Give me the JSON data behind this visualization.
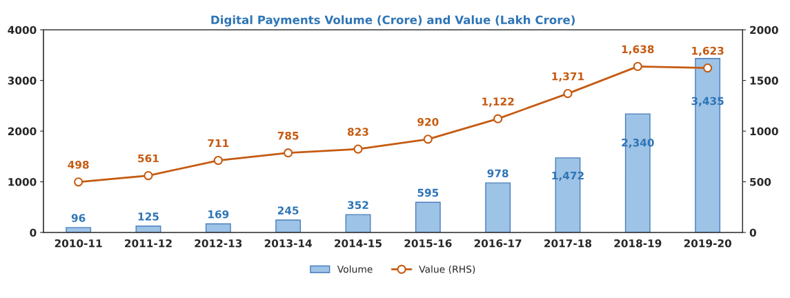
{
  "chart_data": {
    "type": "bar",
    "title": "Digital Payments Volume (Crore) and Value (Lakh Crore)",
    "categories": [
      "2010-11",
      "2011-12",
      "2012-13",
      "2013-14",
      "2014-15",
      "2015-16",
      "2016-17",
      "2017-18",
      "2018-19",
      "2019-20"
    ],
    "series": [
      {
        "name": "Volume",
        "color": "#9dc3e6",
        "values": [
          96,
          125,
          169,
          245,
          352,
          595,
          978,
          1472,
          2340,
          3435
        ],
        "value_labels": [
          "96",
          "125",
          "169",
          "245",
          "352",
          "595",
          "978",
          "1,472",
          "2,340",
          "3,435"
        ]
      },
      {
        "name": "Value (RHS)",
        "type": "line",
        "axis": "y2",
        "color": "#c55a11",
        "values": [
          498,
          561,
          711,
          785,
          823,
          920,
          1122,
          1371,
          1638,
          1623
        ],
        "value_labels": [
          "498",
          "561",
          "711",
          "785",
          "823",
          "920",
          "1,122",
          "1,371",
          "1,638",
          "1,623"
        ]
      }
    ],
    "ylim": [
      0,
      4000
    ],
    "yticks": [
      0,
      1000,
      2000,
      3000,
      4000
    ],
    "y2lim": [
      0,
      2000
    ],
    "y2ticks": [
      0,
      500,
      1000,
      1500,
      2000
    ],
    "marker": "circle",
    "grid": false,
    "legend": "bottom"
  }
}
